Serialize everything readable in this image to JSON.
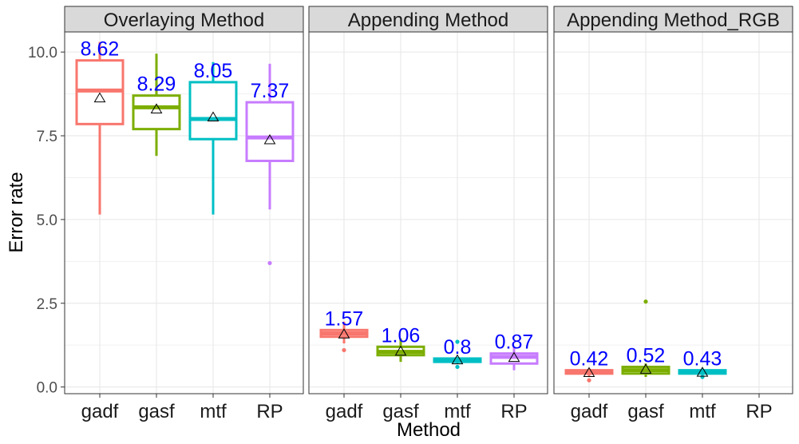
{
  "chart_data": {
    "type": "boxplot",
    "xlabel": "Method",
    "ylabel": "Error rate",
    "ylim": [
      -0.2,
      10.6
    ],
    "y_ticks": [
      0.0,
      2.5,
      5.0,
      7.5,
      10.0
    ],
    "y_tick_labels": [
      "0.0",
      "2.5",
      "5.0",
      "7.5",
      "10.0"
    ],
    "categories": [
      "gadf",
      "gasf",
      "mtf",
      "RP"
    ],
    "grid": true,
    "legend": "none",
    "mean_marker": "triangle",
    "colors": {
      "gadf": "#F8766D",
      "gasf": "#7CAE00",
      "mtf": "#00BFC4",
      "RP": "#C77CFF",
      "mean_label": "#0000FF"
    },
    "facets": [
      {
        "title": "Overlaying Method",
        "boxes": [
          {
            "category": "gadf",
            "whisker_low": 5.15,
            "q1": 7.85,
            "median": 8.85,
            "q3": 9.75,
            "whisker_high": 10.3,
            "mean": 8.62,
            "mean_label": "8.62",
            "outliers": []
          },
          {
            "category": "gasf",
            "whisker_low": 6.9,
            "q1": 7.7,
            "median": 8.35,
            "q3": 8.7,
            "whisker_high": 9.95,
            "mean": 8.29,
            "mean_label": "8.29",
            "outliers": []
          },
          {
            "category": "mtf",
            "whisker_low": 5.15,
            "q1": 7.4,
            "median": 8.0,
            "q3": 9.1,
            "whisker_high": 9.7,
            "mean": 8.05,
            "mean_label": "8.05",
            "outliers": []
          },
          {
            "category": "RP",
            "whisker_low": 5.3,
            "q1": 6.75,
            "median": 7.45,
            "q3": 8.5,
            "whisker_high": 9.65,
            "mean": 7.37,
            "mean_label": "7.37",
            "outliers": [
              3.7
            ]
          }
        ]
      },
      {
        "title": "Appending Method",
        "boxes": [
          {
            "category": "gadf",
            "whisker_low": 1.3,
            "q1": 1.5,
            "median": 1.6,
            "q3": 1.7,
            "whisker_high": 1.95,
            "mean": 1.57,
            "mean_label": "1.57",
            "outliers": [
              1.1
            ]
          },
          {
            "category": "gasf",
            "whisker_low": 0.75,
            "q1": 0.95,
            "median": 1.05,
            "q3": 1.2,
            "whisker_high": 1.45,
            "mean": 1.06,
            "mean_label": "1.06",
            "outliers": []
          },
          {
            "category": "mtf",
            "whisker_low": 0.7,
            "q1": 0.75,
            "median": 0.8,
            "q3": 0.85,
            "whisker_high": 0.9,
            "mean": 0.8,
            "mean_label": "0.8",
            "outliers": [
              0.6,
              1.35
            ]
          },
          {
            "category": "RP",
            "whisker_low": 0.5,
            "q1": 0.7,
            "median": 0.9,
            "q3": 1.0,
            "whisker_high": 1.2,
            "mean": 0.87,
            "mean_label": "0.87",
            "outliers": []
          }
        ]
      },
      {
        "title": "Appending Method_RGB",
        "boxes": [
          {
            "category": "gadf",
            "whisker_low": 0.3,
            "q1": 0.4,
            "median": 0.45,
            "q3": 0.5,
            "whisker_high": 0.55,
            "mean": 0.42,
            "mean_label": "0.42",
            "outliers": [
              0.2
            ]
          },
          {
            "category": "gasf",
            "whisker_low": 0.3,
            "q1": 0.4,
            "median": 0.5,
            "q3": 0.6,
            "whisker_high": 0.7,
            "mean": 0.52,
            "mean_label": "0.52",
            "outliers": [
              2.55
            ]
          },
          {
            "category": "mtf",
            "whisker_low": 0.35,
            "q1": 0.4,
            "median": 0.45,
            "q3": 0.5,
            "whisker_high": 0.55,
            "mean": 0.43,
            "mean_label": "0.43",
            "outliers": [
              0.3
            ]
          }
        ]
      }
    ]
  }
}
